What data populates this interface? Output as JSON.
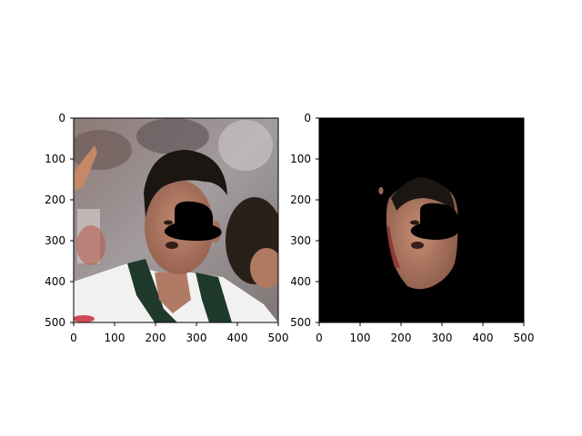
{
  "panels": [
    {
      "id": "left",
      "description_role": "original-photo-with-occluder",
      "xticks": [
        "0",
        "100",
        "200",
        "300",
        "400",
        "500"
      ],
      "yticks": [
        "0",
        "100",
        "200",
        "300",
        "400",
        "500"
      ],
      "xlim": [
        0,
        500
      ],
      "ylim": [
        500,
        0
      ]
    },
    {
      "id": "right",
      "description_role": "segmented-face-mask",
      "xticks": [
        "0",
        "100",
        "200",
        "300",
        "400",
        "500"
      ],
      "yticks": [
        "0",
        "100",
        "200",
        "300",
        "400",
        "500"
      ],
      "xlim": [
        0,
        500
      ],
      "ylim": [
        500,
        0
      ]
    }
  ],
  "colors": {
    "axis": "#000000",
    "mask_background": "#000000",
    "occluder": "#000000",
    "shirt_green": "#1f3a2a",
    "shirt_white": "#f1f1f1",
    "skin": "#b98068",
    "hair": "#1b1612",
    "crowd_red": "#b75a4b"
  }
}
